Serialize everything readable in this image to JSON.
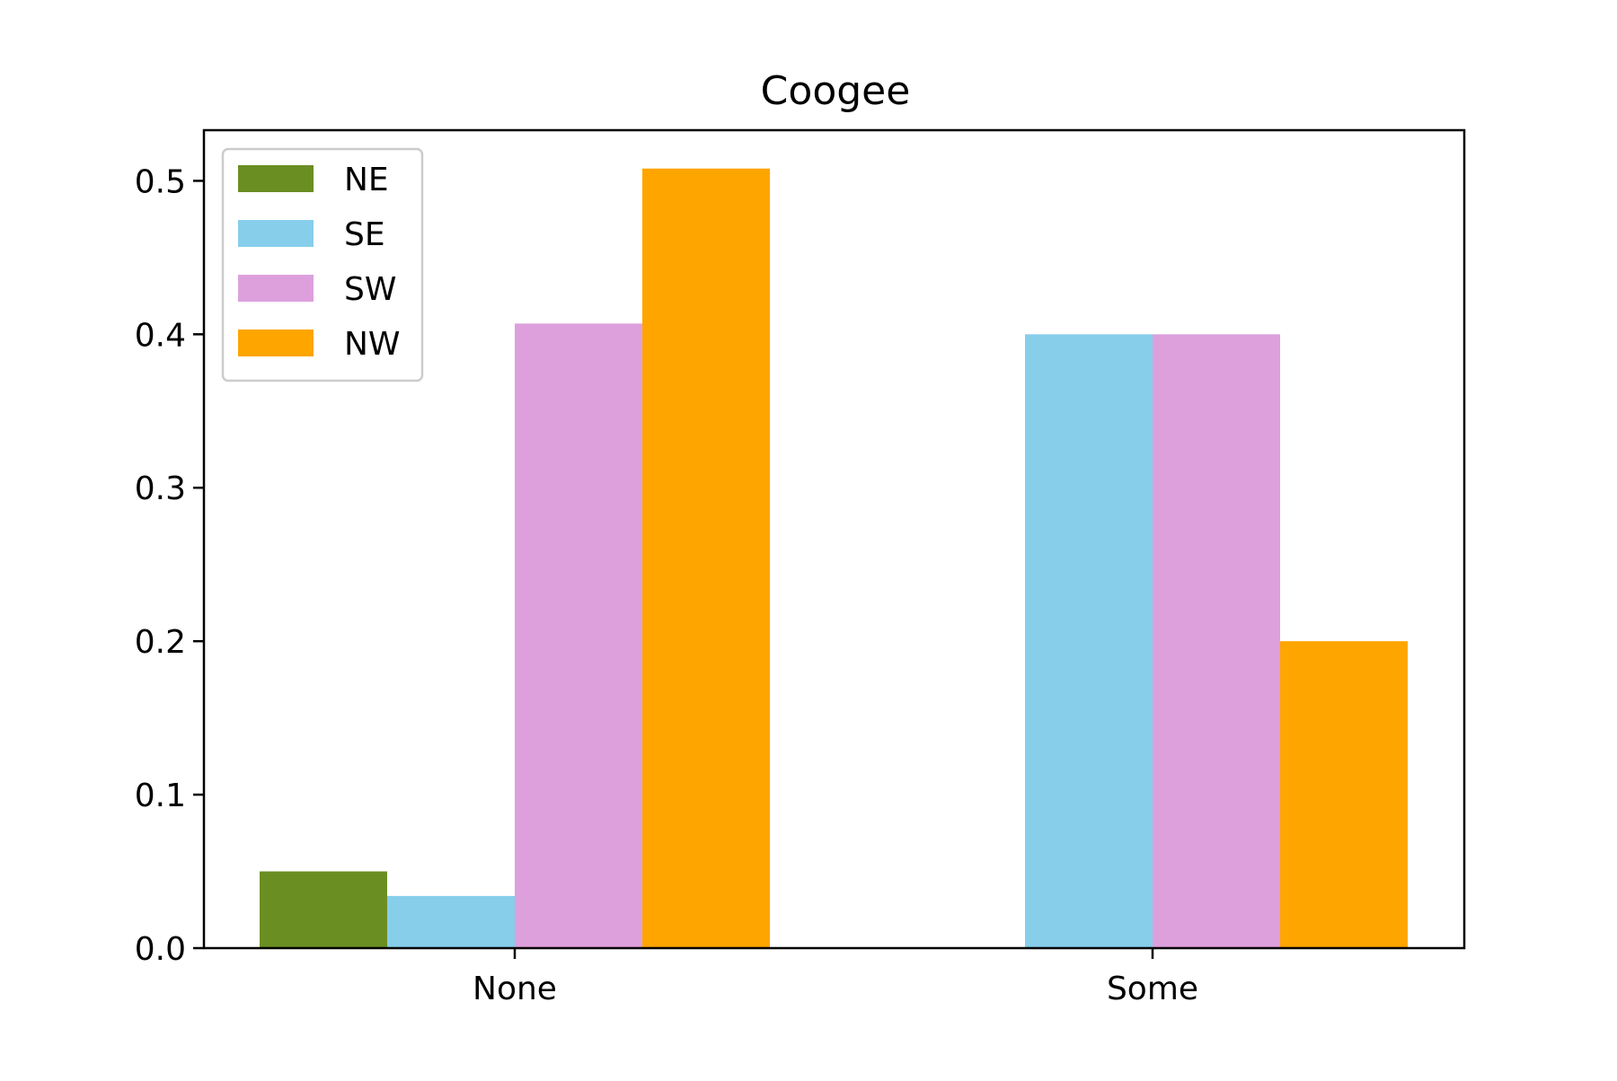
{
  "chart_data": {
    "type": "bar",
    "title": "Coogee",
    "xlabel": "",
    "ylabel": "",
    "categories": [
      "None",
      "Some"
    ],
    "series": [
      {
        "name": "NE",
        "color": "#6b8e23",
        "values": [
          0.05,
          0.0
        ]
      },
      {
        "name": "SE",
        "color": "#87ceeb",
        "values": [
          0.034,
          0.4
        ]
      },
      {
        "name": "SW",
        "color": "#dda0dd",
        "values": [
          0.407,
          0.4
        ]
      },
      {
        "name": "NW",
        "color": "#ffa500",
        "values": [
          0.508,
          0.2
        ]
      }
    ],
    "ylim": [
      0,
      0.533
    ],
    "yticks": [
      0.0,
      0.1,
      0.2,
      0.3,
      0.4,
      0.5
    ],
    "ytick_labels": [
      "0.0",
      "0.1",
      "0.2",
      "0.3",
      "0.4",
      "0.5"
    ],
    "grid": false,
    "legend_position": "top-left"
  }
}
